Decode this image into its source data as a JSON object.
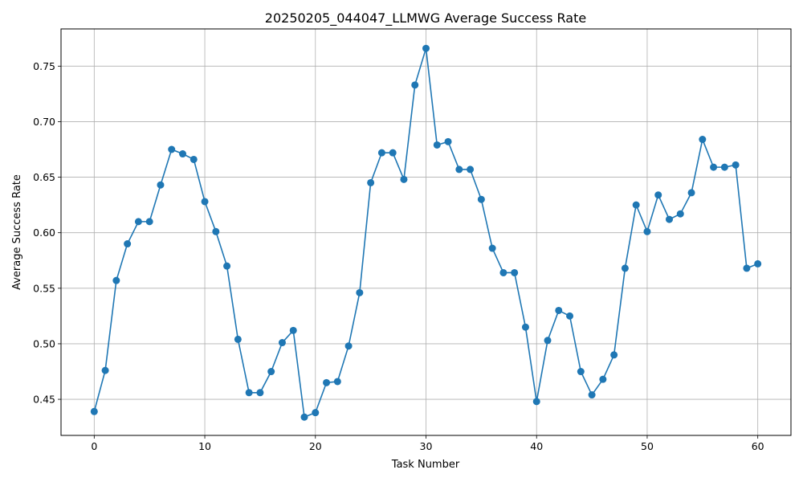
{
  "chart_data": {
    "type": "line",
    "title": "20250205_044047_LLMWG Average Success Rate",
    "xlabel": "Task Number",
    "ylabel": "Average Success Rate",
    "xlim": [
      -3,
      63
    ],
    "ylim": [
      0.4175,
      0.7835
    ],
    "xticks": [
      0,
      10,
      20,
      30,
      40,
      50,
      60
    ],
    "xtick_labels": [
      "0",
      "10",
      "20",
      "30",
      "40",
      "50",
      "60"
    ],
    "yticks": [
      0.45,
      0.5,
      0.55,
      0.6,
      0.65,
      0.7,
      0.75
    ],
    "ytick_labels": [
      "0.45",
      "0.50",
      "0.55",
      "0.60",
      "0.65",
      "0.70",
      "0.75"
    ],
    "grid": true,
    "marker": "circle",
    "color": "#1f77b4",
    "x": [
      0,
      1,
      2,
      3,
      4,
      5,
      6,
      7,
      8,
      9,
      10,
      11,
      12,
      13,
      14,
      15,
      16,
      17,
      18,
      19,
      20,
      21,
      22,
      23,
      24,
      25,
      26,
      27,
      28,
      29,
      30,
      31,
      32,
      33,
      34,
      35,
      36,
      37,
      38,
      39,
      40,
      41,
      42,
      43,
      44,
      45,
      46,
      47,
      48,
      49,
      50,
      51,
      52,
      53,
      54,
      55,
      56,
      57,
      58,
      59,
      60
    ],
    "series": [
      {
        "values": [
          0.439,
          0.476,
          0.557,
          0.59,
          0.61,
          0.61,
          0.643,
          0.675,
          0.671,
          0.666,
          0.628,
          0.601,
          0.57,
          0.504,
          0.456,
          0.456,
          0.475,
          0.501,
          0.512,
          0.434,
          0.438,
          0.465,
          0.466,
          0.498,
          0.546,
          0.645,
          0.672,
          0.672,
          0.648,
          0.733,
          0.766,
          0.679,
          0.682,
          0.657,
          0.657,
          0.63,
          0.586,
          0.564,
          0.564,
          0.515,
          0.448,
          0.503,
          0.53,
          0.525,
          0.475,
          0.454,
          0.468,
          0.49,
          0.568,
          0.625,
          0.601,
          0.634,
          0.612,
          0.617,
          0.636,
          0.684,
          0.659,
          0.659,
          0.661,
          0.568,
          0.572
        ]
      }
    ]
  }
}
